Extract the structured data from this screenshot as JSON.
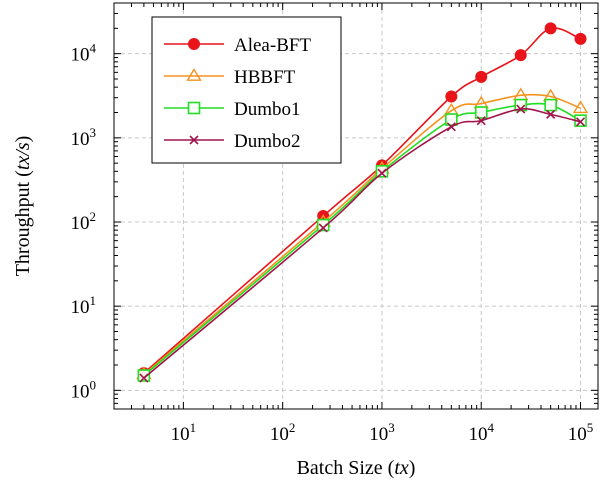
{
  "chart_data": {
    "type": "line",
    "title": "",
    "xlabel": "Batch Size",
    "xlabel_unit": "tx",
    "ylabel": "Throughput",
    "ylabel_unit": "tx/s",
    "x_scale": "log",
    "y_scale": "log",
    "xlim": [
      2,
      150000
    ],
    "ylim": [
      0.6,
      40000
    ],
    "x_ticks": [
      {
        "base": "10",
        "exp": "1",
        "value": 10
      },
      {
        "base": "10",
        "exp": "2",
        "value": 100
      },
      {
        "base": "10",
        "exp": "3",
        "value": 1000
      },
      {
        "base": "10",
        "exp": "4",
        "value": 10000
      },
      {
        "base": "10",
        "exp": "5",
        "value": 100000
      }
    ],
    "y_ticks": [
      {
        "base": "10",
        "exp": "0",
        "value": 1
      },
      {
        "base": "10",
        "exp": "1",
        "value": 10
      },
      {
        "base": "10",
        "exp": "2",
        "value": 100
      },
      {
        "base": "10",
        "exp": "3",
        "value": 1000
      },
      {
        "base": "10",
        "exp": "4",
        "value": 10000
      }
    ],
    "grid": true,
    "legend_position": "top-left",
    "x": [
      4,
      256,
      1000,
      5000,
      10000,
      25000,
      50000,
      100000
    ],
    "series": [
      {
        "name": "Alea-BFT",
        "color": "#e8141a",
        "marker": "circle",
        "values": [
          1.6,
          118,
          470,
          3100,
          5300,
          9600,
          20000,
          15000
        ]
      },
      {
        "name": "HBBFT",
        "color": "#f5921e",
        "marker": "triangle",
        "values": [
          1.55,
          100,
          430,
          2100,
          2550,
          3200,
          3100,
          2250
        ]
      },
      {
        "name": "Dumbo1",
        "color": "#22dd22",
        "marker": "square",
        "values": [
          1.5,
          92,
          400,
          1650,
          2000,
          2450,
          2450,
          1600
        ]
      },
      {
        "name": "Dumbo2",
        "color": "#a0154b",
        "marker": "cross",
        "values": [
          1.4,
          85,
          380,
          1350,
          1600,
          2200,
          1900,
          1550
        ]
      }
    ]
  }
}
